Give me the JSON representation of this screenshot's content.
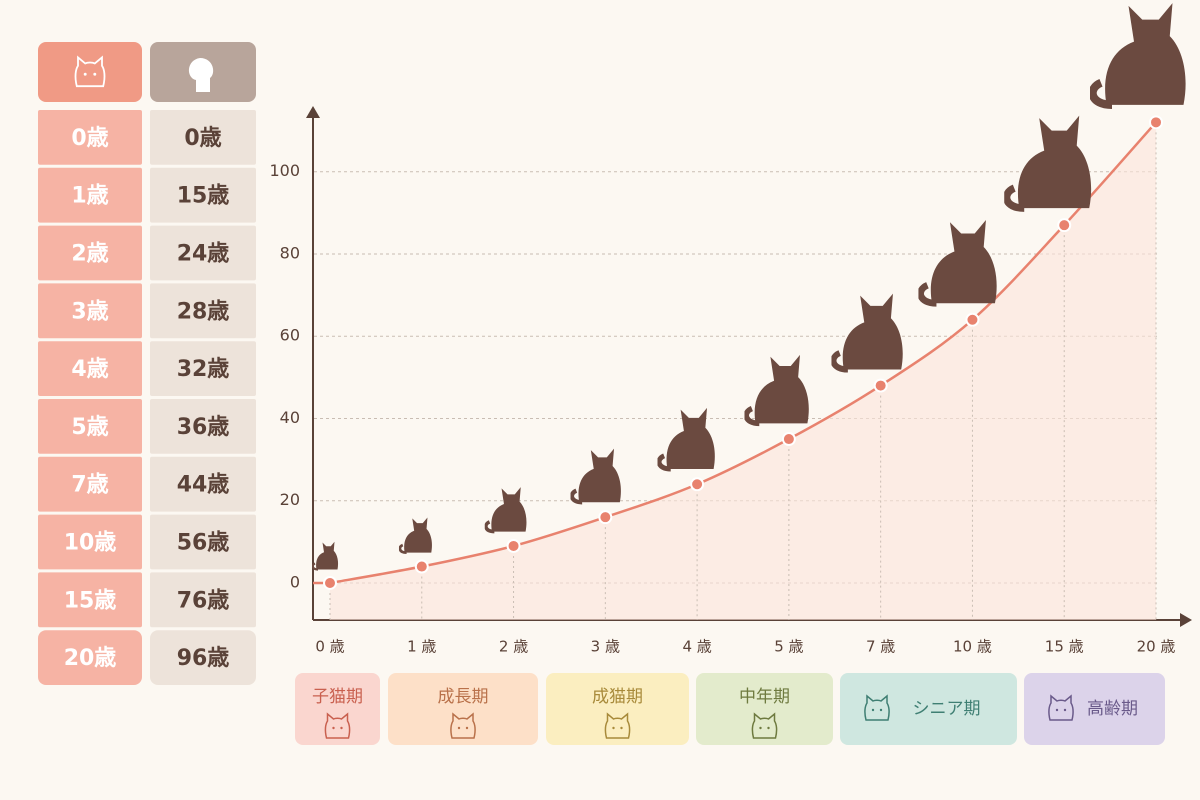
{
  "table": {
    "cat_ages": [
      "0歳",
      "1歳",
      "2歳",
      "3歳",
      "4歳",
      "5歳",
      "7歳",
      "10歳",
      "15歳",
      "20歳"
    ],
    "human_ages": [
      "0歳",
      "15歳",
      "24歳",
      "28歳",
      "32歳",
      "36歳",
      "44歳",
      "56歳",
      "76歳",
      "96歳"
    ]
  },
  "chart_data": {
    "type": "line",
    "categories": [
      "0 歳",
      "1 歳",
      "2 歳",
      "3 歳",
      "4 歳",
      "5 歳",
      "7 歳",
      "10 歳",
      "15 歳",
      "20 歳"
    ],
    "values": [
      0,
      4,
      9,
      16,
      24,
      35,
      48,
      64,
      87,
      112
    ],
    "color": "#e8826e",
    "ylim": [
      -9,
      115
    ],
    "yticks": [
      0,
      20,
      40,
      60,
      80,
      100
    ],
    "grid": true
  },
  "stages": [
    {
      "label": "子猫期",
      "color": "#fad6cf"
    },
    {
      "label": "成長期",
      "color": "#fde0c8"
    },
    {
      "label": "成猫期",
      "color": "#fbeec0"
    },
    {
      "label": "中年期",
      "color": "#e3ebcc"
    },
    {
      "label": "シニア期",
      "color": "#cfe7e0"
    },
    {
      "label": "高齢期",
      "color": "#dcd3ea"
    }
  ]
}
